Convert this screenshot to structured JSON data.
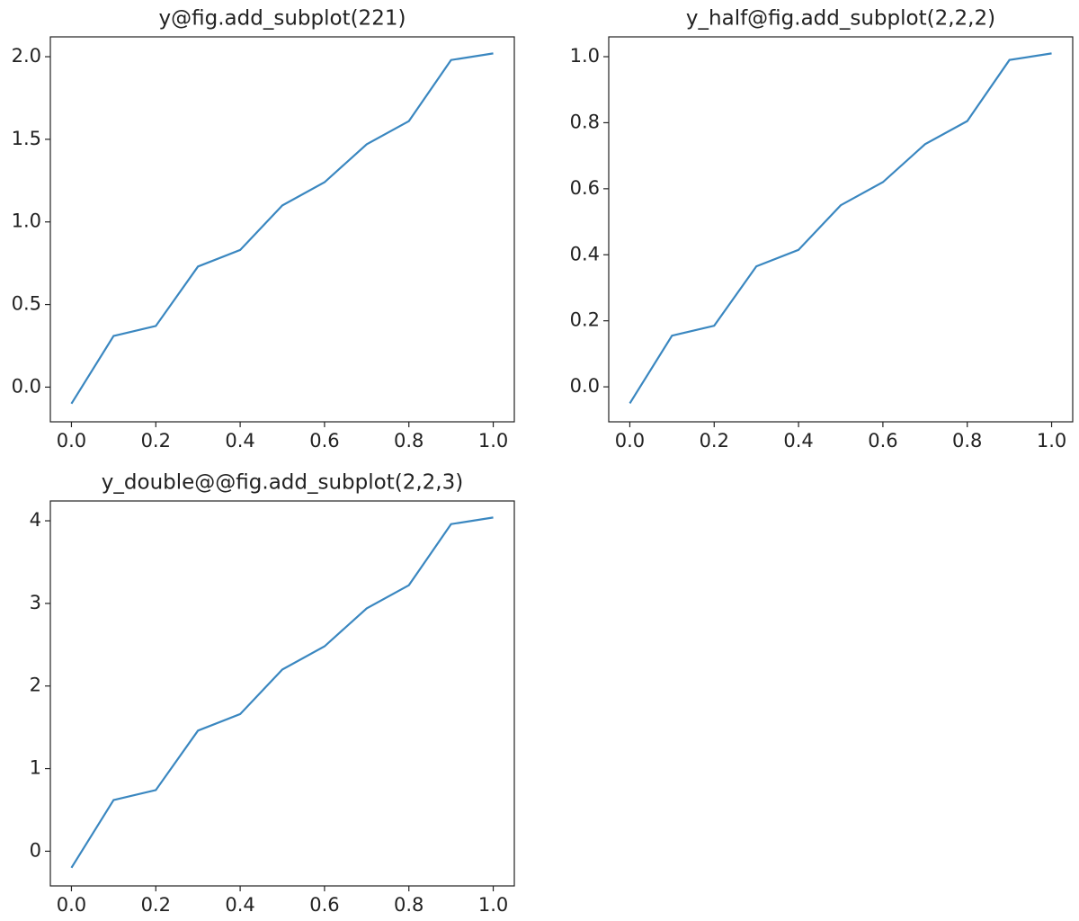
{
  "chart_data": [
    {
      "type": "line",
      "title": "y@fig.add_subplot(221)",
      "x": [
        0,
        0.1,
        0.2,
        0.3,
        0.4,
        0.5,
        0.6,
        0.7,
        0.8,
        0.9,
        1
      ],
      "series": [
        {
          "color": "#3a87c0",
          "values": [
            -0.1,
            0.31,
            0.37,
            0.73,
            0.83,
            1.1,
            1.24,
            1.47,
            1.61,
            1.98,
            2.02
          ]
        }
      ],
      "xlim": [
        -0.05,
        1.05
      ],
      "ylim": [
        -0.21,
        2.12
      ],
      "xticks": [
        {
          "value": 0,
          "label": "0.0"
        },
        0.2,
        0.4,
        0.6,
        0.8,
        {
          "value": 1,
          "label": "1.0"
        }
      ],
      "yticks": [
        {
          "value": 0,
          "label": "0.0"
        },
        0.5,
        {
          "value": 1,
          "label": "1.0"
        },
        1.5,
        {
          "value": 2,
          "label": "2.0"
        }
      ]
    },
    {
      "type": "line",
      "title": "y_half@fig.add_subplot(2,2,2)",
      "x": [
        0,
        0.1,
        0.2,
        0.3,
        0.4,
        0.5,
        0.6,
        0.7,
        0.8,
        0.9,
        1
      ],
      "series": [
        {
          "color": "#3a87c0",
          "values": [
            -0.05,
            0.155,
            0.185,
            0.365,
            0.415,
            0.55,
            0.62,
            0.735,
            0.805,
            0.99,
            1.01
          ]
        }
      ],
      "xlim": [
        -0.05,
        1.05
      ],
      "ylim": [
        -0.106,
        1.06
      ],
      "xticks": [
        {
          "value": 0,
          "label": "0.0"
        },
        0.2,
        0.4,
        0.6,
        0.8,
        {
          "value": 1,
          "label": "1.0"
        }
      ],
      "yticks": [
        {
          "value": 0,
          "label": "0.0"
        },
        0.2,
        0.4,
        0.6,
        0.8,
        {
          "value": 1,
          "label": "1.0"
        }
      ]
    },
    {
      "type": "line",
      "title": "y_double@@fig.add_subplot(2,2,3)",
      "x": [
        0,
        0.1,
        0.2,
        0.3,
        0.4,
        0.5,
        0.6,
        0.7,
        0.8,
        0.9,
        1
      ],
      "series": [
        {
          "color": "#3a87c0",
          "values": [
            -0.2,
            0.62,
            0.74,
            1.46,
            1.66,
            2.2,
            2.48,
            2.94,
            3.22,
            3.96,
            4.04
          ]
        }
      ],
      "xlim": [
        -0.05,
        1.05
      ],
      "ylim": [
        -0.42,
        4.24
      ],
      "xticks": [
        {
          "value": 0,
          "label": "0.0"
        },
        0.2,
        0.4,
        0.6,
        0.8,
        {
          "value": 1,
          "label": "1.0"
        }
      ],
      "yticks": [
        0,
        1,
        2,
        3,
        4
      ]
    }
  ]
}
